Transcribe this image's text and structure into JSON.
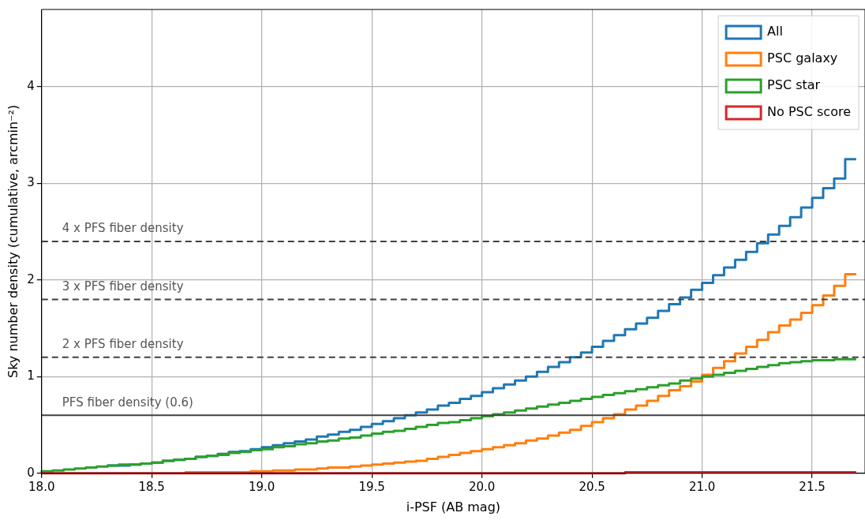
{
  "chart_data": {
    "type": "step",
    "xlabel": "i-PSF (AB mag)",
    "ylabel": "Sky number density (cumulative, arcmin⁻²)",
    "x": [
      18.0,
      18.05,
      18.1,
      18.15,
      18.2,
      18.25,
      18.3,
      18.35,
      18.4,
      18.45,
      18.5,
      18.55,
      18.6,
      18.65,
      18.7,
      18.75,
      18.8,
      18.85,
      18.9,
      18.95,
      19.0,
      19.05,
      19.1,
      19.15,
      19.2,
      19.25,
      19.3,
      19.35,
      19.4,
      19.45,
      19.5,
      19.55,
      19.6,
      19.65,
      19.7,
      19.75,
      19.8,
      19.85,
      19.9,
      19.95,
      20.0,
      20.05,
      20.1,
      20.15,
      20.2,
      20.25,
      20.3,
      20.35,
      20.4,
      20.45,
      20.5,
      20.55,
      20.6,
      20.65,
      20.7,
      20.75,
      20.8,
      20.85,
      20.9,
      20.95,
      21.0,
      21.05,
      21.1,
      21.15,
      21.2,
      21.25,
      21.3,
      21.35,
      21.4,
      21.45,
      21.5,
      21.55,
      21.6,
      21.65,
      21.7
    ],
    "series": [
      {
        "name": "All",
        "color": "#1f77b4",
        "values": [
          null,
          null,
          null,
          null,
          null,
          null,
          0.07,
          0.08,
          0.08,
          0.09,
          0.1,
          0.11,
          0.13,
          0.14,
          0.15,
          0.17,
          0.18,
          0.2,
          0.22,
          0.23,
          0.25,
          0.27,
          0.29,
          0.31,
          0.33,
          0.35,
          0.38,
          0.4,
          0.43,
          0.45,
          0.48,
          0.51,
          0.54,
          0.57,
          0.6,
          0.63,
          0.66,
          0.7,
          0.73,
          0.77,
          0.8,
          0.84,
          0.88,
          0.92,
          0.96,
          1.0,
          1.05,
          1.1,
          1.15,
          1.2,
          1.25,
          1.31,
          1.37,
          1.43,
          1.49,
          1.55,
          1.61,
          1.68,
          1.75,
          1.82,
          1.9,
          1.97,
          2.05,
          2.13,
          2.21,
          2.29,
          2.38,
          2.47,
          2.56,
          2.65,
          2.75,
          2.85,
          2.95,
          3.05,
          3.25
        ]
      },
      {
        "name": "PSC galaxy",
        "color": "#ff7f0e",
        "values": [
          null,
          null,
          null,
          null,
          null,
          null,
          null,
          null,
          null,
          null,
          null,
          null,
          null,
          0.01,
          0.01,
          0.01,
          0.01,
          0.01,
          0.01,
          0.01,
          0.02,
          0.02,
          0.03,
          0.03,
          0.04,
          0.04,
          0.05,
          0.06,
          0.06,
          0.07,
          0.08,
          0.09,
          0.1,
          0.11,
          0.12,
          0.13,
          0.15,
          0.17,
          0.19,
          0.21,
          0.23,
          0.25,
          0.27,
          0.29,
          0.31,
          0.34,
          0.36,
          0.39,
          0.42,
          0.45,
          0.49,
          0.53,
          0.57,
          0.61,
          0.66,
          0.7,
          0.75,
          0.8,
          0.86,
          0.9,
          0.95,
          1.02,
          1.09,
          1.16,
          1.24,
          1.31,
          1.38,
          1.46,
          1.53,
          1.59,
          1.66,
          1.74,
          1.84,
          1.94,
          2.06
        ]
      },
      {
        "name": "PSC star",
        "color": "#2ca02c",
        "values": [
          0.01,
          0.02,
          0.03,
          0.04,
          0.05,
          0.06,
          0.07,
          0.08,
          0.09,
          0.09,
          0.1,
          0.11,
          0.13,
          0.14,
          0.15,
          0.17,
          0.18,
          0.19,
          0.21,
          0.22,
          0.24,
          0.25,
          0.27,
          0.28,
          0.3,
          0.31,
          0.33,
          0.34,
          0.36,
          0.37,
          0.39,
          0.41,
          0.43,
          0.44,
          0.46,
          0.48,
          0.5,
          0.52,
          0.53,
          0.55,
          0.57,
          0.59,
          0.61,
          0.63,
          0.65,
          0.67,
          0.69,
          0.71,
          0.73,
          0.75,
          0.77,
          0.79,
          0.81,
          0.83,
          0.85,
          0.87,
          0.89,
          0.91,
          0.93,
          0.96,
          0.98,
          1.0,
          1.02,
          1.04,
          1.06,
          1.08,
          1.1,
          1.12,
          1.14,
          1.15,
          1.16,
          1.17,
          1.17,
          1.18,
          1.18
        ]
      },
      {
        "name": "No PSC score",
        "color": "#d62728",
        "values": [
          0,
          0,
          0,
          0,
          0,
          0,
          0,
          0,
          0,
          0,
          0,
          0,
          0,
          0,
          0,
          0,
          0,
          0,
          0,
          0,
          0,
          0,
          0,
          0,
          0,
          0,
          0,
          0,
          0,
          0,
          0,
          0,
          0,
          0,
          0,
          0,
          0,
          0,
          0,
          0,
          0,
          0,
          0,
          0,
          0,
          0,
          0,
          0,
          0,
          0,
          0,
          0,
          0,
          0,
          0.01,
          0.01,
          0.01,
          0.01,
          0.01,
          0.01,
          0.01,
          0.01,
          0.01,
          0.01,
          0.01,
          0.01,
          0.01,
          0.01,
          0.01,
          0.01,
          0.01,
          0.01,
          0.01,
          0.01,
          0.01
        ]
      }
    ],
    "xlim": [
      18,
      21.74
    ],
    "xticks": [
      {
        "value": 18,
        "label": "18.0"
      },
      {
        "value": 18.5,
        "label": "18.5"
      },
      {
        "value": 19,
        "label": "19.0"
      },
      {
        "value": 19.5,
        "label": "19.5"
      },
      {
        "value": 20,
        "label": "20.0"
      },
      {
        "value": 20.5,
        "label": "20.5"
      },
      {
        "value": 21,
        "label": "21.0"
      },
      {
        "value": 21.5,
        "label": "21.5"
      }
    ],
    "ylim": [
      0,
      4.8
    ],
    "yticks": [
      0,
      1,
      2,
      3,
      4
    ],
    "ref_lines": [
      {
        "axis": "y",
        "value": 0.6,
        "label": "PFS fiber density (0.6)",
        "color": "#404040",
        "line_style": "solid"
      },
      {
        "axis": "y",
        "value": 1.2,
        "label": "2 x PFS fiber density",
        "color": "#404040",
        "line_style": "dashed"
      },
      {
        "axis": "y",
        "value": 1.8,
        "label": "3 x PFS fiber density",
        "color": "#404040",
        "line_style": "dashed"
      },
      {
        "axis": "y",
        "value": 2.4,
        "label": "4 x PFS fiber density",
        "color": "#404040",
        "line_style": "dashed"
      }
    ],
    "grid": true,
    "legend": "top right"
  }
}
